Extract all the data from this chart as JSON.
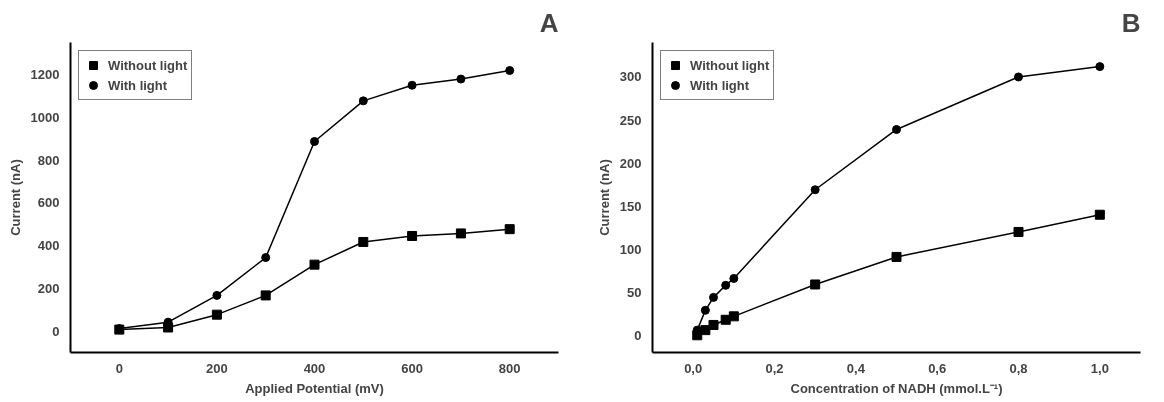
{
  "chart_data": [
    {
      "type": "line",
      "title": "A",
      "xlabel": "Applied Potential (mV)",
      "ylabel": "Current (nA)",
      "x": [
        0,
        100,
        200,
        300,
        400,
        500,
        600,
        700,
        800
      ],
      "xlim": [
        -100,
        900
      ],
      "ylim": [
        -100,
        1350
      ],
      "xticks": [
        0,
        200,
        400,
        600,
        800
      ],
      "yticks": [
        0,
        200,
        400,
        600,
        800,
        1000,
        1200
      ],
      "grid": false,
      "legend": "top left",
      "line_style": "solid",
      "series": [
        {
          "name": "Without light",
          "color": "#000000",
          "marker": "square",
          "values": [
            7,
            17,
            77,
            167,
            311,
            417,
            445,
            457,
            477
          ]
        },
        {
          "name": "With light",
          "color": "#000000",
          "marker": "circle",
          "values": [
            12,
            42,
            167,
            344,
            887,
            1077,
            1150,
            1179,
            1219
          ]
        }
      ]
    },
    {
      "type": "line",
      "title": "B",
      "xlabel": "Concentration of NADH (mmol.L⁻¹)",
      "ylabel": "Current (nA)",
      "x": [
        0.01,
        0.03,
        0.05,
        0.08,
        0.1,
        0.3,
        0.5,
        0.8,
        1.0
      ],
      "xlim": [
        -0.1,
        1.1
      ],
      "ylim": [
        -20,
        340
      ],
      "xticks": [
        {
          "value": 0,
          "label": "0,0"
        },
        {
          "value": 0.2,
          "label": "0,2"
        },
        {
          "value": 0.4,
          "label": "0,4"
        },
        {
          "value": 0.6,
          "label": "0,6"
        },
        {
          "value": 0.8,
          "label": "0,8"
        },
        {
          "value": 1.0,
          "label": "1,0"
        }
      ],
      "yticks": [
        0,
        50,
        100,
        150,
        200,
        250,
        300
      ],
      "grid": false,
      "legend": "top left",
      "line_style": "solid",
      "series": [
        {
          "name": "Without light",
          "color": "#000000",
          "marker": "square",
          "values": [
            0,
            6,
            12,
            18,
            22,
            59,
            91,
            120,
            140
          ]
        },
        {
          "name": "With light",
          "color": "#000000",
          "marker": "circle",
          "values": [
            6,
            29,
            44,
            58,
            66,
            169,
            239,
            300,
            312
          ]
        }
      ]
    }
  ]
}
